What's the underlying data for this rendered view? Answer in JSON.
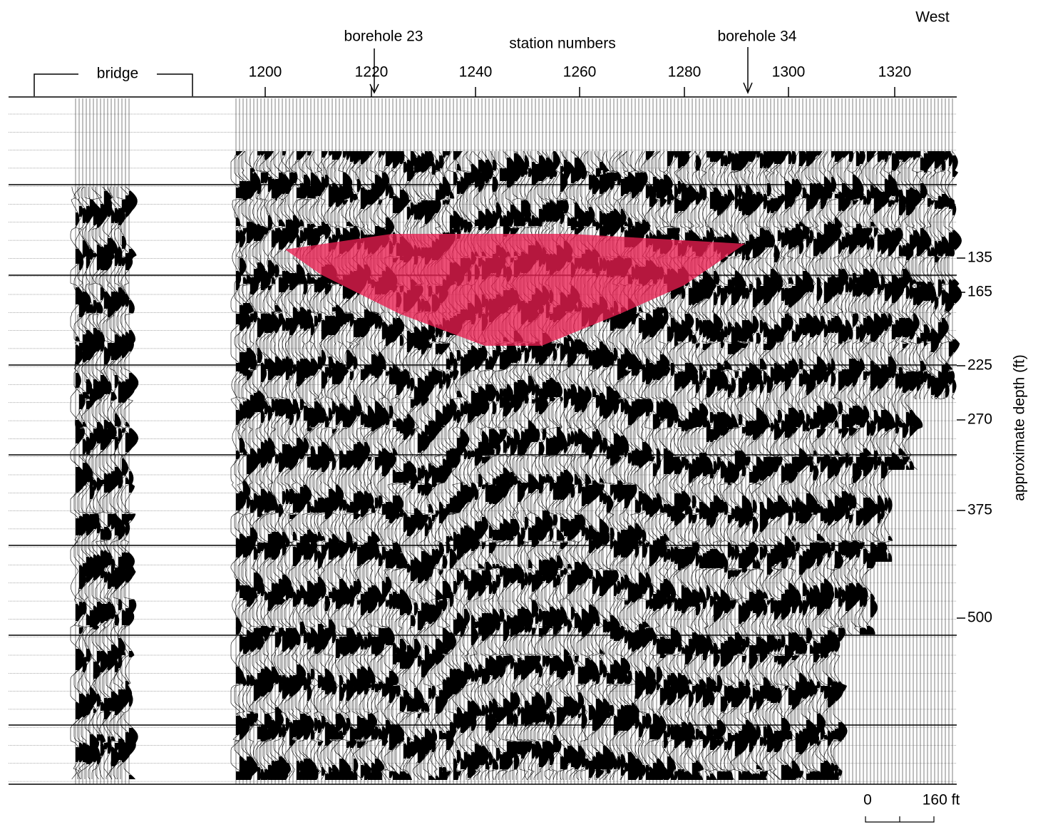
{
  "labels": {
    "west": "West",
    "borehole_23": "borehole 23",
    "station_numbers": "station numbers",
    "borehole_34": "borehole 34",
    "bridge": "bridge",
    "depth_axis": "approximate depth (ft)"
  },
  "stations": [
    "1200",
    "1220",
    "1240",
    "1260",
    "1280",
    "1300",
    "1320"
  ],
  "depths": [
    "135",
    "165",
    "225",
    "270",
    "375",
    "500"
  ],
  "scale": {
    "start": "0",
    "end": "160 ft"
  }
}
